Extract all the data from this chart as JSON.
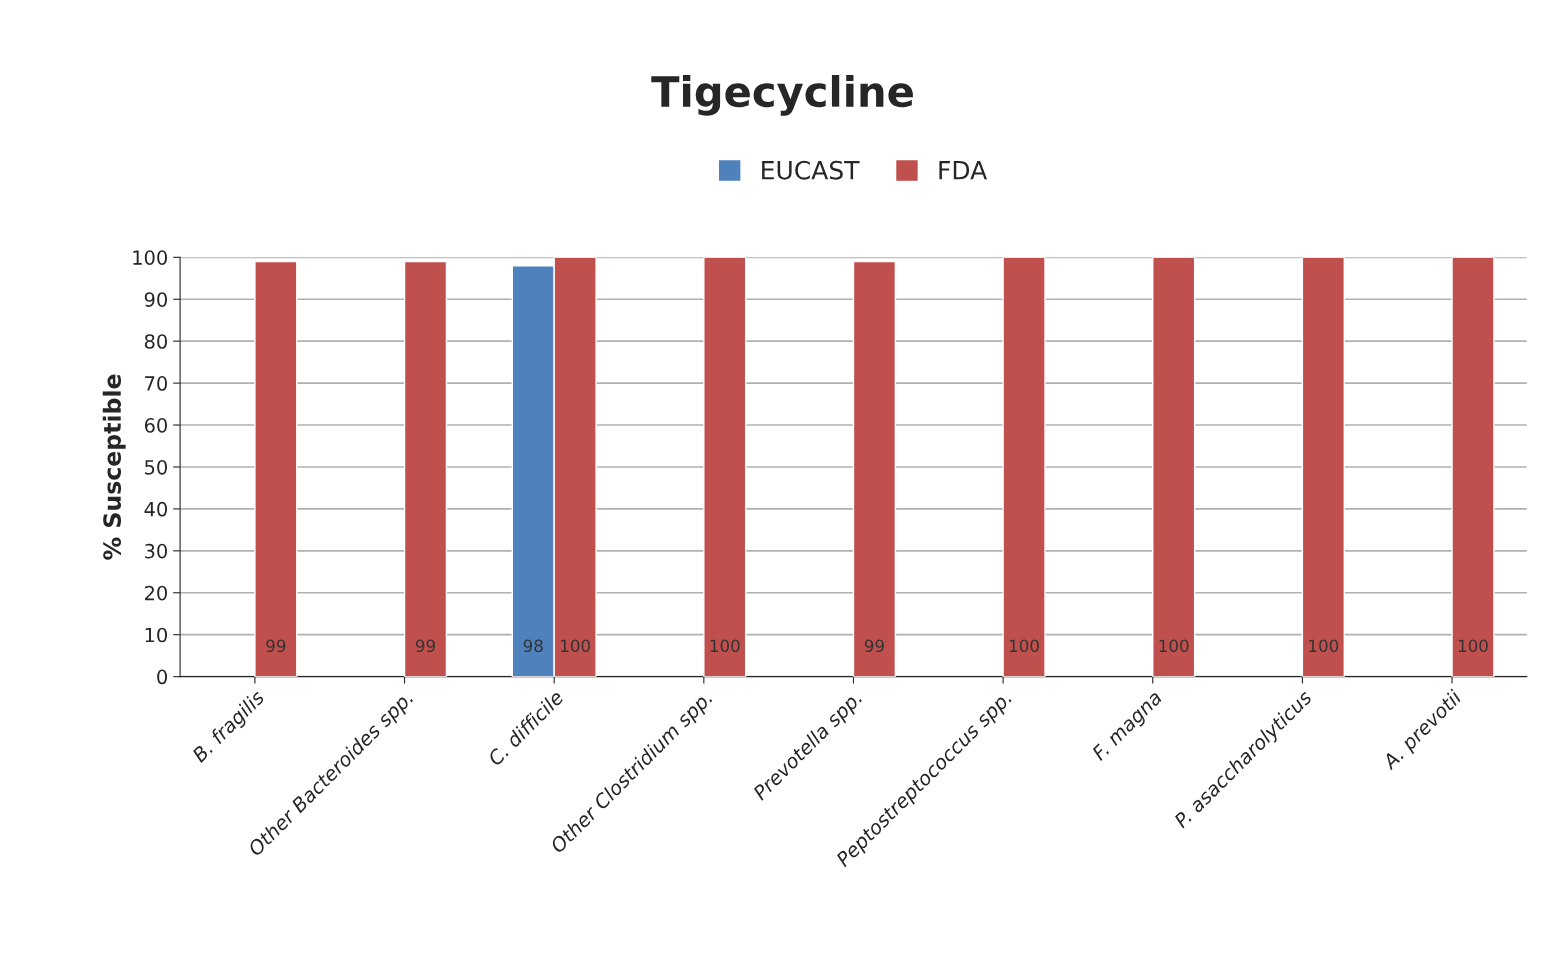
{
  "chart_data": {
    "type": "bar",
    "title": "Tigecycline",
    "ylabel": "% Susceptible",
    "categories": [
      "B. fragilis",
      "Other Bacteroides spp.",
      "C. difficile",
      "Other Clostridium spp.",
      "Prevotella spp.",
      "Peptostreptococcus spp.",
      "F. magna",
      "P. asaccharolyticus",
      "A. prevotii"
    ],
    "series": [
      {
        "name": "EUCAST",
        "color": "#4f81bd",
        "values": [
          null,
          null,
          98,
          null,
          null,
          null,
          null,
          null,
          null
        ]
      },
      {
        "name": "FDA",
        "color": "#c0504d",
        "values": [
          99,
          99,
          100,
          100,
          99,
          100,
          100,
          100,
          100
        ]
      }
    ],
    "ylim": [
      0,
      100
    ],
    "yticks": [
      0,
      10,
      20,
      30,
      40,
      50,
      60,
      70,
      80,
      90,
      100
    ],
    "grid": "y",
    "legend": "top",
    "data_labels": true
  }
}
